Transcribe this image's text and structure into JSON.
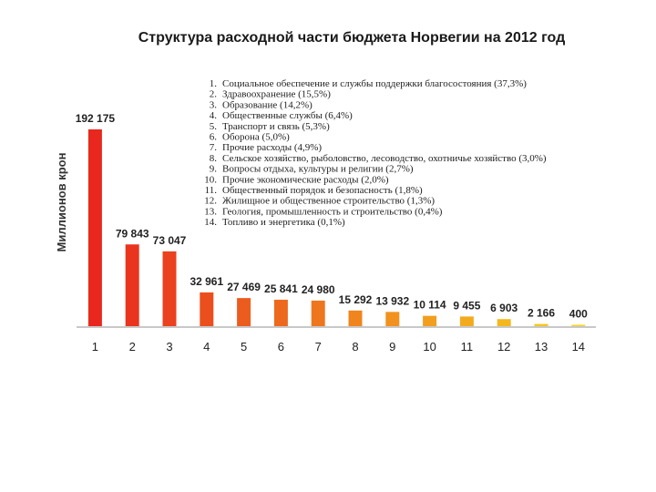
{
  "chart_data": {
    "type": "bar",
    "title": "Структура расходной части бюджета Норвегии на 2012 год",
    "ylabel": "Миллионов крон",
    "xlabel": "",
    "categories": [
      "1",
      "2",
      "3",
      "4",
      "5",
      "6",
      "7",
      "8",
      "9",
      "10",
      "11",
      "12",
      "13",
      "14"
    ],
    "values": [
      192175,
      79843,
      73047,
      32961,
      27469,
      25841,
      24980,
      15292,
      13932,
      10114,
      9455,
      6903,
      2166,
      400
    ],
    "value_labels": [
      "192 175",
      "79 843",
      "73 047",
      "32 961",
      "27 469",
      "25 841",
      "24 980",
      "15 292",
      "13 932",
      "10 114",
      "9 455",
      "6 903",
      "2 166",
      "400"
    ],
    "ylim": [
      0,
      210000
    ],
    "grid": false,
    "legend_items": [
      {
        "num": "1.",
        "text": "Социальное обеспечение и службы поддержки благосостояния  (37,3%)"
      },
      {
        "num": "2.",
        "text": "Здравоохранение (15,5%)"
      },
      {
        "num": "3.",
        "text": "Образование (14,2%)"
      },
      {
        "num": "4.",
        "text": "Общественные службы (6,4%)"
      },
      {
        "num": "5.",
        "text": "Транспорт и связь (5,3%)"
      },
      {
        "num": "6.",
        "text": "Оборона (5,0%)"
      },
      {
        "num": "7.",
        "text": "Прочие расходы (4,9%)"
      },
      {
        "num": "8.",
        "text": "Сельское хозяйство, рыболовство, лесоводство, охотничье хозяйство  (3,0%)"
      },
      {
        "num": "9.",
        "text": "Вопросы отдыха, культуры и религии (2,7%)"
      },
      {
        "num": "10.",
        "text": "Прочие экономические расходы (2,0%)"
      },
      {
        "num": "11.",
        "text": "Общественный порядок и безопасность  (1,8%)"
      },
      {
        "num": "12.",
        "text": "Жилищное и общественное строительство (1,3%)"
      },
      {
        "num": "13.",
        "text": "Геология, промышленность и строительство (0,4%)"
      },
      {
        "num": "14.",
        "text": "Топливо и энергетика (0,1%)"
      }
    ],
    "colors": {
      "gradient_start": "#e8281e",
      "gradient_end": "#f6d21e",
      "axis": "#c8c8c8"
    }
  }
}
